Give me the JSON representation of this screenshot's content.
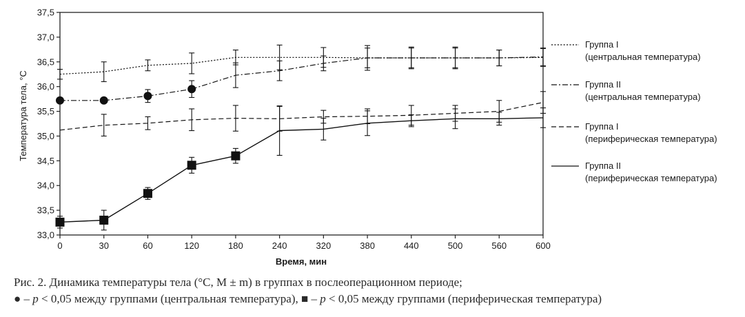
{
  "chart_data": {
    "type": "line",
    "xlabel": "Время, мин",
    "ylabel": "Температура тела, °С",
    "x_ticks": [
      "0",
      "30",
      "60",
      "120",
      "180",
      "240",
      "320",
      "380",
      "440",
      "500",
      "560",
      "600"
    ],
    "ylim": [
      33.0,
      37.5
    ],
    "y_ticks": [
      "33,0",
      "33,5",
      "34,0",
      "34,5",
      "35,0",
      "35,5",
      "36,0",
      "36,5",
      "37,0",
      "37,5"
    ],
    "y_tick_values": [
      33.0,
      33.5,
      34.0,
      34.5,
      35.0,
      35.5,
      36.0,
      36.5,
      37.0,
      37.5
    ],
    "grid": false,
    "legend_position": "right",
    "series": [
      {
        "name": [
          "Группа I",
          "(центральная температура)"
        ],
        "style": "dotted",
        "values": [
          36.25,
          36.3,
          36.43,
          36.47,
          36.59,
          36.59,
          36.59,
          36.58,
          36.58,
          36.58,
          36.58,
          36.59
        ],
        "errors": [
          0.1,
          0.2,
          0.11,
          0.21,
          0.15,
          0.25,
          0.2,
          0.25,
          0.22,
          0.22,
          0.16,
          0.18
        ]
      },
      {
        "name": [
          "Группа II",
          "(центральная температура)"
        ],
        "style": "dashdot",
        "values": [
          35.72,
          35.72,
          35.81,
          35.95,
          36.23,
          36.32,
          36.47,
          36.58,
          36.58,
          36.58,
          36.58,
          36.6
        ],
        "errors": [
          0,
          0,
          0.13,
          0.17,
          0.25,
          0.2,
          0.15,
          0.2,
          0.2,
          0.2,
          0.16,
          0.18
        ],
        "marker": "circle",
        "marked_points": [
          0,
          1,
          2,
          3
        ]
      },
      {
        "name": [
          "Группа I",
          "(периферическая температура)"
        ],
        "style": "dashed",
        "values": [
          35.12,
          35.22,
          35.26,
          35.33,
          35.36,
          35.35,
          35.39,
          35.4,
          35.42,
          35.46,
          35.5,
          35.68
        ],
        "errors": [
          0,
          0.22,
          0.13,
          0.22,
          0.26,
          0.25,
          0.13,
          0.15,
          0.2,
          0.16,
          0.22,
          0.22
        ],
        "marker": null
      },
      {
        "name": [
          "Группа II",
          "(периферическая температура)"
        ],
        "style": "solid",
        "values": [
          33.26,
          33.3,
          33.84,
          34.41,
          34.6,
          35.11,
          35.14,
          35.26,
          35.31,
          35.35,
          35.35,
          35.37
        ],
        "errors": [
          0.12,
          0.2,
          0.12,
          0.16,
          0.15,
          0.5,
          0.22,
          0.25,
          0.12,
          0.2,
          0.13,
          0.2
        ],
        "marker": "square",
        "marked_points": [
          0,
          1,
          2,
          3,
          4
        ]
      }
    ]
  },
  "caption": {
    "line1": "Рис. 2. Динамика температуры тела (°С, М ± m) в группах в послеоперационном периоде;",
    "bullet_circle": "●",
    "dash1": " – ",
    "p1": "p",
    "text1": " < 0,05 между группами (центральная температура), ",
    "bullet_square": "■",
    "dash2": " – ",
    "p2": "p",
    "text2": " < 0,05 между группами (периферическая температура)"
  }
}
